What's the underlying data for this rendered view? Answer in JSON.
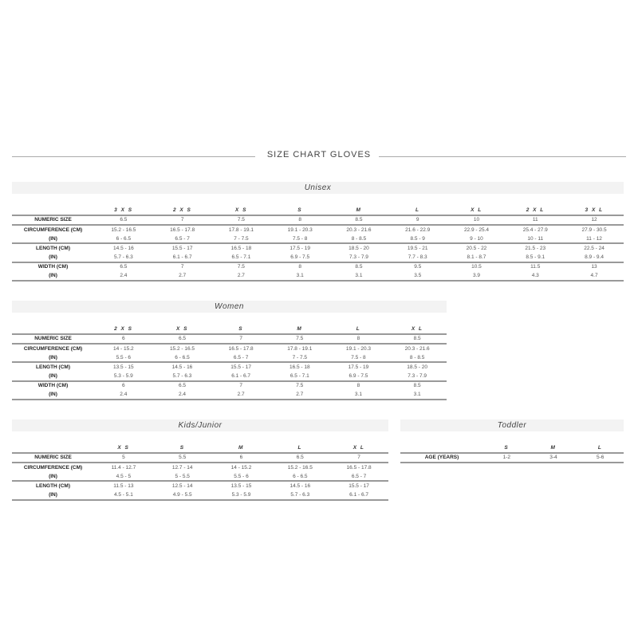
{
  "title": "SIZE CHART GLOVES",
  "sections": [
    {
      "id": "unisex",
      "heading": "Unisex",
      "columns": [
        "3 X S",
        "2 X S",
        "X S",
        "S",
        "M",
        "L",
        "X L",
        "2 X L",
        "3 X L"
      ],
      "rows": [
        {
          "label": "NUMERIC SIZE",
          "values": [
            "6.5",
            "7",
            "7.5",
            "8",
            "8.5",
            "9",
            "10",
            "11",
            "12"
          ]
        },
        {
          "label": "CIRCUMFERENCE (CM)",
          "values": [
            "15.2 - 16.5",
            "16.5 - 17.8",
            "17.8 - 19.1",
            "19.1 - 20.3",
            "20.3 - 21.6",
            "21.6 - 22.9",
            "22.9 - 25.4",
            "25.4 - 27.9",
            "27.9 - 30.5"
          ]
        },
        {
          "label": "(IN)",
          "values": [
            "6 - 6.5",
            "6.5 - 7",
            "7 - 7.5",
            "7.5 - 8",
            "8 - 8.5",
            "8.5 - 9",
            "9 - 10",
            "10 - 11",
            "11 - 12"
          ]
        },
        {
          "label": "LENGTH (CM)",
          "values": [
            "14.5 - 16",
            "15.5 - 17",
            "16.5 - 18",
            "17.5 - 19",
            "18.5 - 20",
            "19.5 - 21",
            "20.5 - 22",
            "21.5 - 23",
            "22.5 - 24"
          ]
        },
        {
          "label": "(IN)",
          "values": [
            "5.7 - 6.3",
            "6.1 - 6.7",
            "6.5 - 7.1",
            "6.9 - 7.5",
            "7.3 - 7.9",
            "7.7 - 8.3",
            "8.1 - 8.7",
            "8.5 - 9.1",
            "8.9 - 9.4"
          ]
        },
        {
          "label": "WIDTH (CM)",
          "values": [
            "6.5",
            "7",
            "7.5",
            "8",
            "8.5",
            "9.5",
            "10.5",
            "11.5",
            "13"
          ]
        },
        {
          "label": "(IN)",
          "values": [
            "2.4",
            "2.7",
            "2.7",
            "3.1",
            "3.1",
            "3.5",
            "3.9",
            "4.3",
            "4.7"
          ]
        }
      ]
    },
    {
      "id": "women",
      "heading": "Women",
      "columns": [
        "2 X S",
        "X S",
        "S",
        "M",
        "L",
        "X L"
      ],
      "rows": [
        {
          "label": "NUMERIC SIZE",
          "values": [
            "6",
            "6.5",
            "7",
            "7.5",
            "8",
            "8.5"
          ]
        },
        {
          "label": "CIRCUMFERENCE (CM)",
          "values": [
            "14 - 15.2",
            "15.2 - 16.5",
            "16.5 - 17.8",
            "17.8 - 19.1",
            "19.1 - 20.3",
            "20.3 - 21.6"
          ]
        },
        {
          "label": "(IN)",
          "values": [
            "5.5 - 6",
            "6 - 6.5",
            "6.5 - 7",
            "7 - 7.5",
            "7.5 - 8",
            "8 - 8.5"
          ]
        },
        {
          "label": "LENGTH (CM)",
          "values": [
            "13.5 - 15",
            "14.5 - 16",
            "15.5 - 17",
            "16.5 - 18",
            "17.5 - 19",
            "18.5 - 20"
          ]
        },
        {
          "label": "(IN)",
          "values": [
            "5.3 - 5.9",
            "5.7 - 6.3",
            "6.1 - 6.7",
            "6.5 - 7.1",
            "6.9 - 7.5",
            "7.3 - 7.9"
          ]
        },
        {
          "label": "WIDTH (CM)",
          "values": [
            "6",
            "6.5",
            "7",
            "7.5",
            "8",
            "8.5"
          ]
        },
        {
          "label": "(IN)",
          "values": [
            "2.4",
            "2.4",
            "2.7",
            "2.7",
            "3.1",
            "3.1"
          ]
        }
      ]
    },
    {
      "id": "kids",
      "heading": "Kids/Junior",
      "columns": [
        "X S",
        "S",
        "M",
        "L",
        "X L"
      ],
      "rows": [
        {
          "label": "NUMERIC SIZE",
          "values": [
            "5",
            "5.5",
            "6",
            "6.5",
            "7"
          ]
        },
        {
          "label": "CIRCUMFERENCE (CM)",
          "values": [
            "11.4 - 12.7",
            "12.7 - 14",
            "14 - 15.2",
            "15.2 - 16.5",
            "16.5 - 17.8"
          ]
        },
        {
          "label": "(IN)",
          "values": [
            "4.5 - 5",
            "5 - 5.5",
            "5.5 - 6",
            "6 - 6.5",
            "6.5 - 7"
          ]
        },
        {
          "label": "LENGTH (CM)",
          "values": [
            "11.5 - 13",
            "12.5 - 14",
            "13.5 - 15",
            "14.5 - 16",
            "15.5 - 17"
          ]
        },
        {
          "label": "(IN)",
          "values": [
            "4.5 - 5.1",
            "4.9 - 5.5",
            "5.3 - 5.9",
            "5.7 - 6.3",
            "6.1 - 6.7"
          ]
        }
      ]
    },
    {
      "id": "toddler",
      "heading": "Toddler",
      "columns": [
        "S",
        "M",
        "L"
      ],
      "rows": [
        {
          "label": "AGE (YEARS)",
          "values": [
            "1-2",
            "3-4",
            "5-6"
          ]
        }
      ]
    }
  ]
}
